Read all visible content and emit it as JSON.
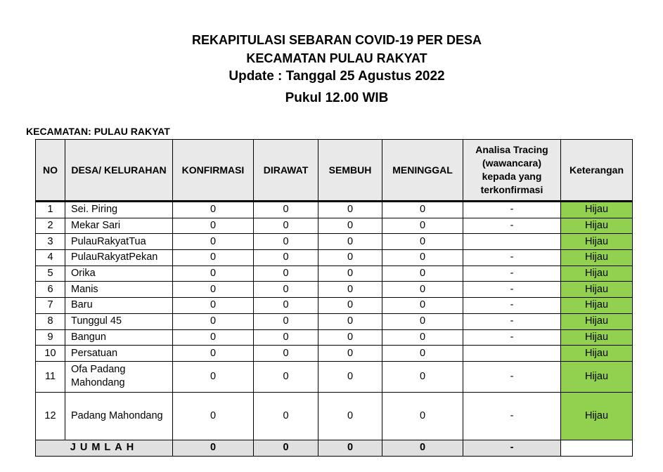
{
  "title": {
    "line1": "REKAPITULASI SEBARAN COVID-19 PER DESA",
    "line2": "KECAMATAN PULAU RAKYAT",
    "line3": "Update : Tanggal 25 Agustus 2022",
    "line4": "Pukul 12.00 WIB"
  },
  "kecamatan_label": "KECAMATAN: PULAU RAKYAT",
  "table": {
    "headers": [
      "NO",
      "DESA/ KELURAHAN",
      "KONFIRMASI",
      "DIRAWAT",
      "SEMBUH",
      "MENINGGAL",
      "Analisa Tracing (wawancara) kepada yang terkonfirmasi",
      "Keterangan"
    ],
    "rows": [
      [
        "1",
        "Sei. Piring",
        "0",
        "0",
        "0",
        "0",
        "-",
        "Hijau"
      ],
      [
        "2",
        "Mekar Sari",
        "0",
        "0",
        "0",
        "0",
        "-",
        "Hijau"
      ],
      [
        "3",
        "PulauRakyatTua",
        "0",
        "0",
        "0",
        "0",
        "",
        "Hijau"
      ],
      [
        "4",
        "PulauRakyatPekan",
        "0",
        "0",
        "0",
        "0",
        "-",
        "Hijau"
      ],
      [
        "5",
        "Orika",
        "0",
        "0",
        "0",
        "0",
        "-",
        "Hijau"
      ],
      [
        "6",
        "Manis",
        "0",
        "0",
        "0",
        "0",
        "-",
        "Hijau"
      ],
      [
        "7",
        "Baru",
        "0",
        "0",
        "0",
        "0",
        "-",
        "Hijau"
      ],
      [
        "8",
        "Tunggul 45",
        "0",
        "0",
        "0",
        "0",
        "-",
        "Hijau"
      ],
      [
        "9",
        "Bangun",
        "0",
        "0",
        "0",
        "0",
        "-",
        "Hijau"
      ],
      [
        "10",
        "Persatuan",
        "0",
        "0",
        "0",
        "0",
        "",
        "Hijau"
      ],
      [
        "11",
        "Ofa Padang Mahondang",
        "0",
        "0",
        "0",
        "0",
        "-",
        "Hijau"
      ],
      [
        "12",
        "Padang Mahondang",
        "0",
        "0",
        "0",
        "0",
        "-",
        "Hijau"
      ]
    ],
    "total": [
      "JUMLAH",
      "0",
      "0",
      "0",
      "0",
      "-",
      ""
    ]
  },
  "colors": {
    "hijau": "#92d050",
    "header_bg": "#e9e9e9"
  }
}
